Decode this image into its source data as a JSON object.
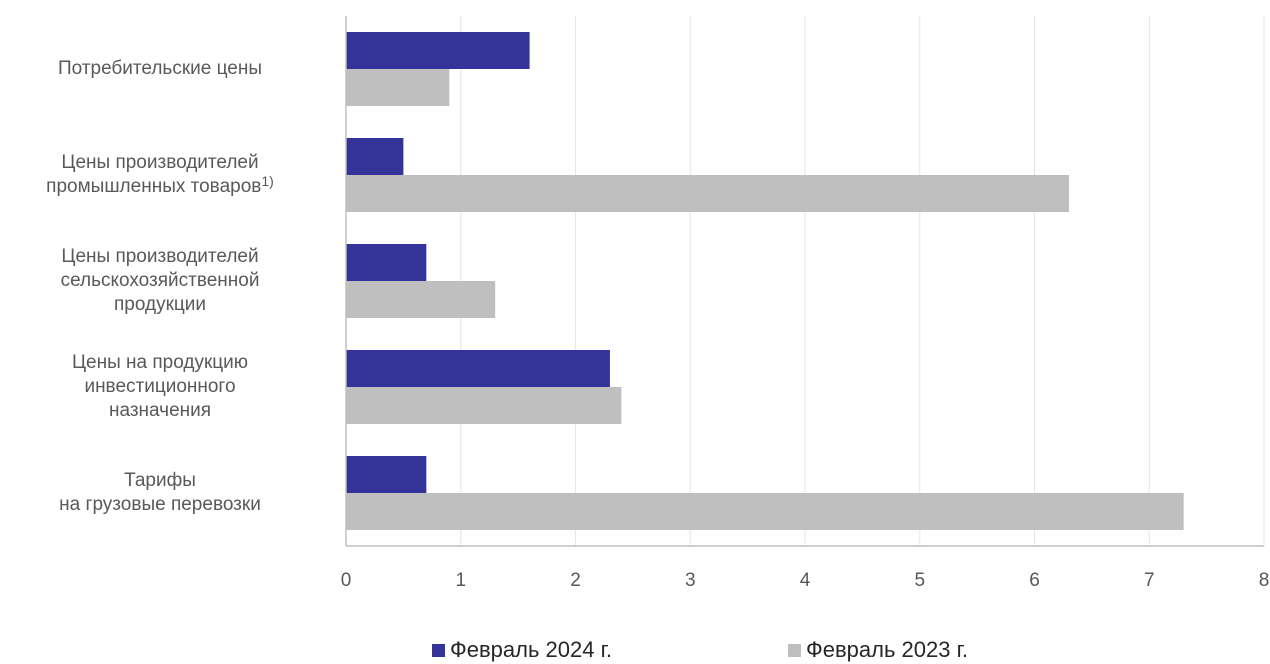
{
  "chart_data": {
    "type": "bar",
    "orientation": "horizontal",
    "categories": [
      {
        "lines": [
          "Потребительские цены"
        ],
        "footnote": ""
      },
      {
        "lines": [
          "Цены производителей",
          "промышленных товаров"
        ],
        "footnote": "1)"
      },
      {
        "lines": [
          "Цены производителей",
          "сельскохозяйственной",
          "продукции"
        ],
        "footnote": ""
      },
      {
        "lines": [
          "Цены на продукцию",
          "инвестиционного",
          "назначения"
        ],
        "footnote": ""
      },
      {
        "lines": [
          "Тарифы",
          "на грузовые перевозки"
        ],
        "footnote": ""
      }
    ],
    "series": [
      {
        "name": "Февраль 2024 г.",
        "color": "#333399",
        "values": [
          1.6,
          0.5,
          0.7,
          2.3,
          0.7
        ]
      },
      {
        "name": "Февраль 2023 г.",
        "color": "#bfbfbf",
        "values": [
          0.9,
          6.3,
          1.3,
          2.4,
          7.3
        ]
      }
    ],
    "xlim": [
      0,
      8
    ],
    "xticks": [
      "0",
      "1",
      "2",
      "3",
      "4",
      "5",
      "6",
      "7",
      "8"
    ],
    "grid": true,
    "legend_position": "bottom"
  }
}
